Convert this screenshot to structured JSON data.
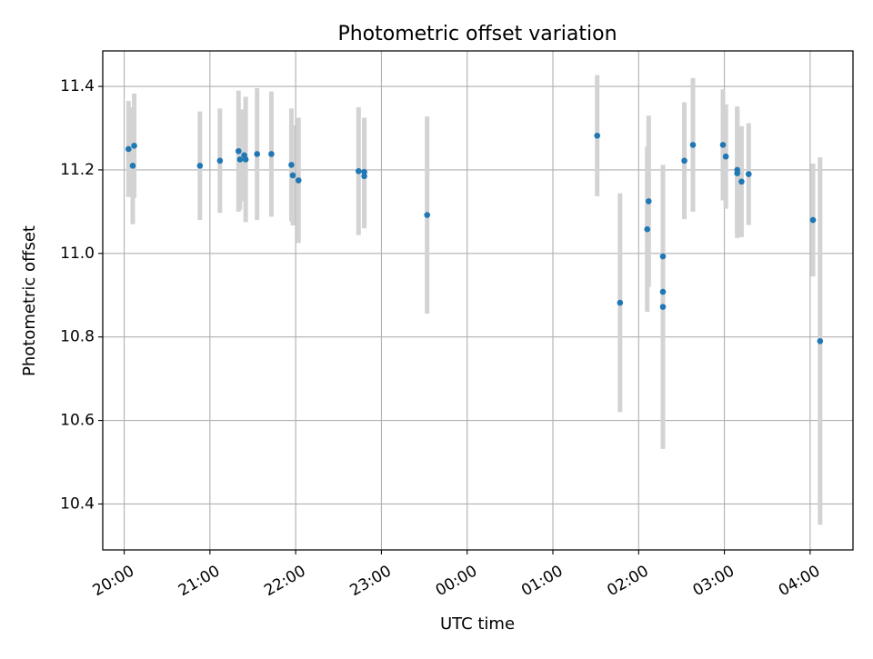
{
  "chart_data": {
    "type": "scatter",
    "title": "Photometric offset variation",
    "xlabel": "UTC time",
    "ylabel": "Photometric offset",
    "x_axis": {
      "kind": "time",
      "range": [
        "19:45",
        "04:30"
      ],
      "ticks": [
        "20:00",
        "21:00",
        "22:00",
        "23:00",
        "00:00",
        "01:00",
        "02:00",
        "03:00",
        "04:00"
      ],
      "tick_label_rotation_deg": 30
    },
    "y_axis": {
      "range": [
        10.29,
        11.485
      ],
      "ticks": [
        10.4,
        10.6,
        10.8,
        11.0,
        11.2,
        11.4
      ]
    },
    "grid": true,
    "legend": "none",
    "colors": {
      "point": "#1f77b4",
      "errorbar": "#d3d3d3",
      "grid": "#b0b0b0"
    },
    "series": [
      {
        "points": [
          {
            "x": "20:03",
            "y": 11.25,
            "err": 0.115
          },
          {
            "x": "20:06",
            "y": 11.21,
            "err": 0.14
          },
          {
            "x": "20:07",
            "y": 11.258,
            "err": 0.125
          },
          {
            "x": "20:53",
            "y": 11.21,
            "err": 0.13
          },
          {
            "x": "21:07",
            "y": 11.222,
            "err": 0.125
          },
          {
            "x": "21:20",
            "y": 11.245,
            "err": 0.145
          },
          {
            "x": "21:21",
            "y": 11.225,
            "err": 0.12
          },
          {
            "x": "21:24",
            "y": 11.235,
            "err": 0.11
          },
          {
            "x": "21:25",
            "y": 11.225,
            "err": 0.15
          },
          {
            "x": "21:33",
            "y": 11.238,
            "err": 0.158
          },
          {
            "x": "21:43",
            "y": 11.238,
            "err": 0.15
          },
          {
            "x": "21:57",
            "y": 11.212,
            "err": 0.135
          },
          {
            "x": "21:58",
            "y": 11.187,
            "err": 0.12
          },
          {
            "x": "22:02",
            "y": 11.175,
            "err": 0.15
          },
          {
            "x": "22:44",
            "y": 11.197,
            "err": 0.153
          },
          {
            "x": "22:48",
            "y": 11.195,
            "err": 0.13
          },
          {
            "x": "22:48",
            "y": 11.185,
            "err": 0.125
          },
          {
            "x": "23:32",
            "y": 11.092,
            "err": 0.236
          },
          {
            "x": "01:31",
            "y": 11.282,
            "err": 0.145
          },
          {
            "x": "01:47",
            "y": 10.882,
            "err": 0.262
          },
          {
            "x": "02:06",
            "y": 11.058,
            "err": 0.198
          },
          {
            "x": "02:07",
            "y": 11.125,
            "err": 0.205
          },
          {
            "x": "02:17",
            "y": 10.993,
            "err": 0.215
          },
          {
            "x": "02:17",
            "y": 10.908,
            "err": 0.205
          },
          {
            "x": "02:17",
            "y": 10.872,
            "err": 0.34
          },
          {
            "x": "02:32",
            "y": 11.222,
            "err": 0.14
          },
          {
            "x": "02:38",
            "y": 11.26,
            "err": 0.16
          },
          {
            "x": "02:59",
            "y": 11.26,
            "err": 0.133
          },
          {
            "x": "03:01",
            "y": 11.232,
            "err": 0.125
          },
          {
            "x": "03:09",
            "y": 11.2,
            "err": 0.152
          },
          {
            "x": "03:09",
            "y": 11.192,
            "err": 0.155
          },
          {
            "x": "03:12",
            "y": 11.172,
            "err": 0.133
          },
          {
            "x": "03:17",
            "y": 11.19,
            "err": 0.122
          },
          {
            "x": "04:02",
            "y": 11.08,
            "err": 0.135
          },
          {
            "x": "04:07",
            "y": 10.79,
            "err": 0.44
          }
        ]
      }
    ]
  }
}
